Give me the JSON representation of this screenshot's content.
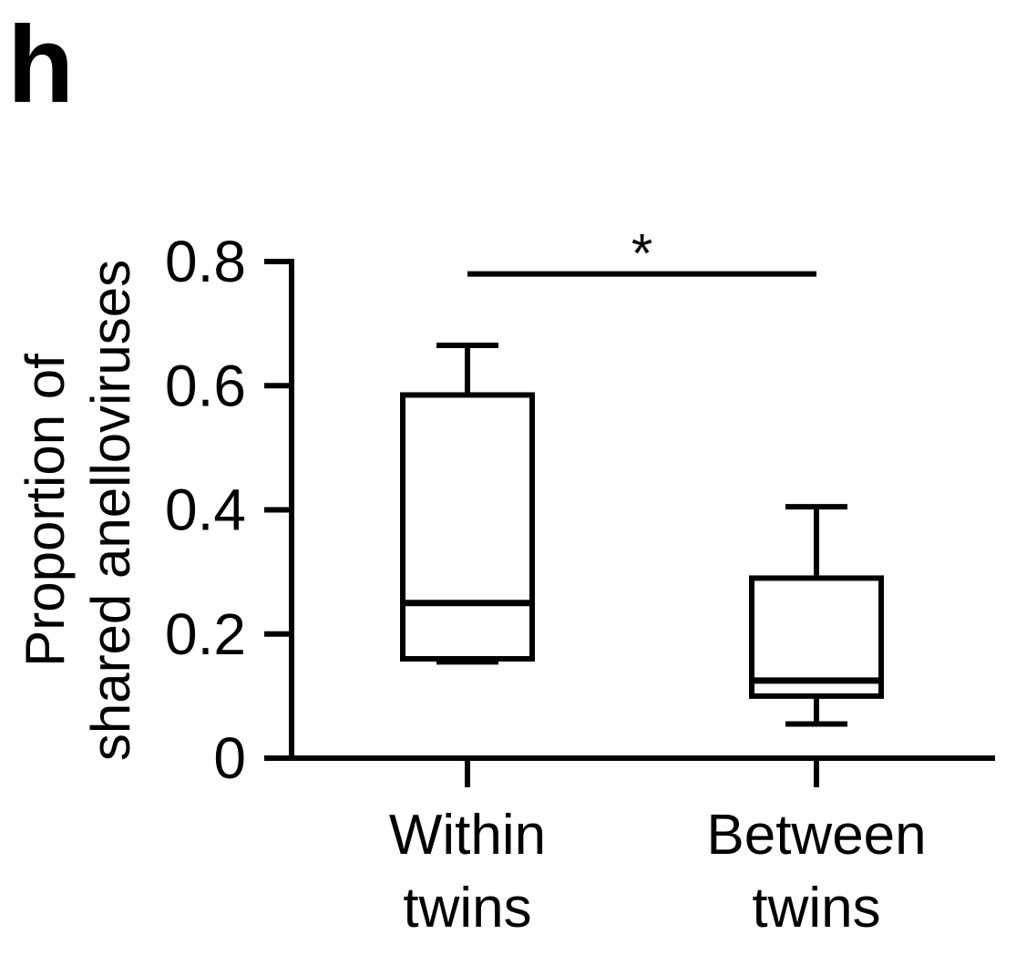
{
  "panel_label": "h",
  "chart_data": {
    "type": "box",
    "ylabel_lines": [
      "Proportion of",
      "shared anelloviruses"
    ],
    "ylim": [
      0,
      0.8
    ],
    "yticks": [
      0,
      0.2,
      0.4,
      0.6,
      0.8
    ],
    "ytick_labels": [
      "0",
      "0.2",
      "0.4",
      "0.6",
      "0.8"
    ],
    "categories": [
      {
        "lines": [
          "Within",
          "twins"
        ]
      },
      {
        "lines": [
          "Between",
          "twins"
        ]
      }
    ],
    "boxes": [
      {
        "whisker_low": 0.155,
        "q1": 0.16,
        "median": 0.25,
        "q3": 0.585,
        "whisker_high": 0.665
      },
      {
        "whisker_low": 0.055,
        "q1": 0.1,
        "median": 0.125,
        "q3": 0.29,
        "whisker_high": 0.405
      }
    ],
    "significance": {
      "from": 0,
      "to": 1,
      "y": 0.78,
      "label": "*"
    },
    "grid": false,
    "legend": "none",
    "line_color": "#000000"
  }
}
